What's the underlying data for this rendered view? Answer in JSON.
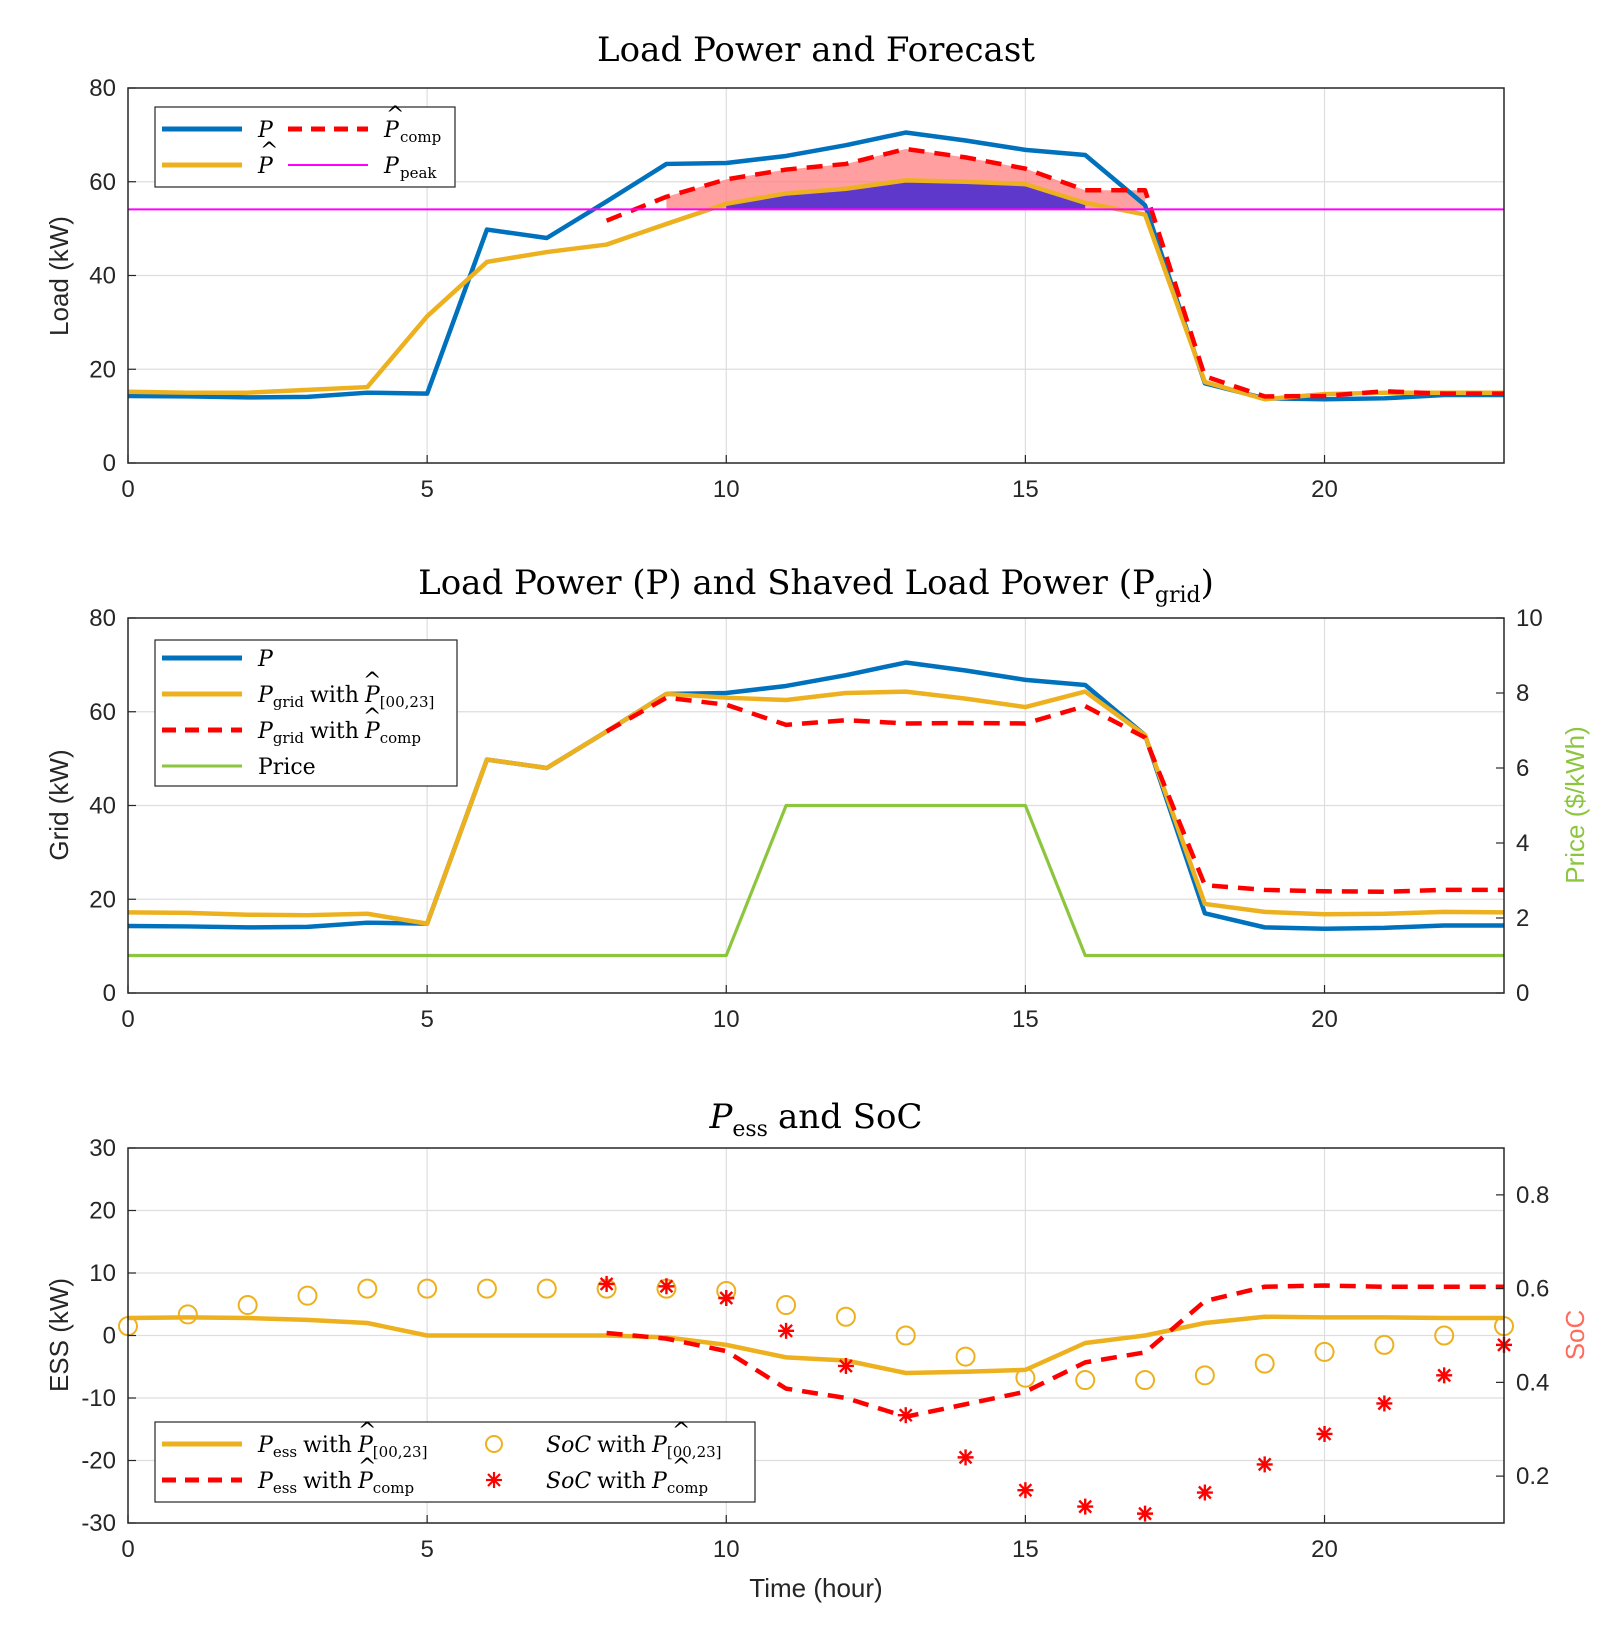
{
  "chart_data": [
    {
      "type": "line",
      "title": "Load Power and Forecast",
      "xlabel": "",
      "ylabel": "Load (kW)",
      "xlim": [
        0,
        23
      ],
      "ylim": [
        0,
        80
      ],
      "xticks": [
        0,
        5,
        10,
        15,
        20
      ],
      "yticks": [
        0,
        20,
        40,
        60,
        80
      ],
      "legend_position": "top-left",
      "series": [
        {
          "name": "P",
          "color": "#0072BD",
          "style": "solid",
          "x": [
            0,
            1,
            2,
            3,
            4,
            5,
            6,
            7,
            8,
            9,
            10,
            11,
            12,
            13,
            14,
            15,
            16,
            17,
            18,
            19,
            20,
            21,
            22,
            23
          ],
          "values": [
            14.3,
            14.2,
            14.0,
            14.1,
            15.0,
            14.8,
            49.8,
            48.0,
            55.8,
            63.8,
            64.0,
            65.5,
            67.8,
            70.5,
            68.8,
            66.8,
            65.7,
            55.0,
            17.0,
            13.8,
            13.6,
            13.8,
            14.5,
            14.5
          ]
        },
        {
          "name": "P̂",
          "color": "#EDB120",
          "style": "solid",
          "x": [
            0,
            1,
            2,
            3,
            4,
            5,
            6,
            7,
            8,
            9,
            10,
            11,
            12,
            13,
            14,
            15,
            16,
            17,
            18,
            19,
            20,
            21,
            22,
            23
          ],
          "values": [
            15.2,
            15.0,
            15.0,
            15.6,
            16.2,
            31.3,
            42.9,
            45.0,
            46.6,
            51.0,
            55.3,
            57.5,
            58.5,
            60.3,
            60.0,
            59.5,
            55.5,
            53.0,
            17.3,
            13.6,
            14.7,
            15.0,
            15.0,
            15.0
          ]
        },
        {
          "name": "P̂comp",
          "color": "#FF0000",
          "style": "dashed",
          "x": [
            8,
            9,
            10,
            11,
            12,
            13,
            14,
            15,
            16,
            17,
            18,
            19,
            20,
            21,
            22,
            23
          ],
          "values": [
            51.7,
            56.8,
            60.5,
            62.6,
            63.8,
            67.0,
            65.2,
            62.8,
            58.2,
            58.2,
            18.5,
            14.2,
            14.3,
            15.3,
            14.8,
            14.8
          ]
        },
        {
          "name": "Ppeak",
          "color": "#FF00FF",
          "style": "solid",
          "x": [
            0,
            23
          ],
          "values": [
            54.1,
            54.1
          ]
        }
      ],
      "areas": [
        {
          "name": "forecast-above-peak",
          "color": "#FF7F7F",
          "x": [
            9,
            10,
            11,
            12,
            13,
            14,
            15,
            16,
            17
          ],
          "upper": [
            56.8,
            60.5,
            62.6,
            63.8,
            67.0,
            65.2,
            62.8,
            58.2,
            58.2
          ],
          "lower": [
            54.1,
            54.1,
            54.1,
            54.1,
            54.1,
            54.1,
            54.1,
            54.1,
            54.1
          ]
        },
        {
          "name": "peak-shaving-band",
          "color": "#5533CC",
          "x": [
            10,
            11,
            12,
            13,
            14,
            15,
            16
          ],
          "upper": [
            55.3,
            57.5,
            58.5,
            60.3,
            60.0,
            59.5,
            55.5
          ],
          "lower": [
            54.1,
            54.1,
            54.1,
            54.1,
            54.1,
            54.1,
            54.1
          ]
        }
      ],
      "legend": {
        "P": "P",
        "Phat": "P",
        "Pcomp": "P",
        "Pcomp_sub": "comp",
        "Ppeak": "P",
        "Ppeak_sub": "peak"
      }
    },
    {
      "type": "line",
      "title": "Load Power (P) and Shaved Load Power (P",
      "title_sub": "grid",
      "xlabel": "",
      "ylabel": "Grid (kW)",
      "y2label": "Price ($/kWh)",
      "xlim": [
        0,
        23
      ],
      "ylim": [
        0,
        80
      ],
      "y2lim": [
        0,
        10
      ],
      "xticks": [
        0,
        5,
        10,
        15,
        20
      ],
      "yticks": [
        0,
        20,
        40,
        60,
        80
      ],
      "y2ticks": [
        0,
        2,
        4,
        6,
        8,
        10
      ],
      "legend_position": "top-left",
      "series": [
        {
          "name": "P",
          "color": "#0072BD",
          "style": "solid",
          "x": [
            0,
            1,
            2,
            3,
            4,
            5,
            6,
            7,
            8,
            9,
            10,
            11,
            12,
            13,
            14,
            15,
            16,
            17,
            18,
            19,
            20,
            21,
            22,
            23
          ],
          "values": [
            14.3,
            14.2,
            14.0,
            14.1,
            15.0,
            14.8,
            49.8,
            48.0,
            55.8,
            63.8,
            64.0,
            65.5,
            67.8,
            70.5,
            68.8,
            66.8,
            65.7,
            55.0,
            17.0,
            14.0,
            13.7,
            13.9,
            14.4,
            14.4
          ]
        },
        {
          "name": "Pgrid with P̂[00,23]",
          "color": "#EDB120",
          "style": "solid",
          "x": [
            0,
            1,
            2,
            3,
            4,
            5,
            6,
            7,
            8,
            9,
            10,
            11,
            12,
            13,
            14,
            15,
            16,
            17,
            18,
            19,
            20,
            21,
            22,
            23
          ],
          "values": [
            17.2,
            17.1,
            16.7,
            16.6,
            16.9,
            14.8,
            49.8,
            48.0,
            55.8,
            63.8,
            63.0,
            62.5,
            64.0,
            64.3,
            62.8,
            61.0,
            64.3,
            55.0,
            19.0,
            17.3,
            16.8,
            16.9,
            17.3,
            17.2
          ]
        },
        {
          "name": "Pgrid with P̂comp",
          "color": "#FF0000",
          "style": "dashed",
          "x": [
            8,
            9,
            10,
            11,
            12,
            13,
            14,
            15,
            16,
            17,
            18,
            19,
            20,
            21,
            22,
            23
          ],
          "values": [
            55.8,
            63.0,
            61.5,
            57.2,
            58.2,
            57.5,
            57.6,
            57.5,
            61.2,
            54.5,
            23.0,
            22.0,
            21.7,
            21.6,
            22.0,
            22.0
          ]
        },
        {
          "name": "Price",
          "color": "#8CC63F",
          "style": "solid",
          "axis": "right",
          "x": [
            0,
            1,
            2,
            3,
            4,
            5,
            6,
            7,
            8,
            9,
            10,
            11,
            12,
            13,
            14,
            15,
            16,
            17,
            18,
            19,
            20,
            21,
            22,
            23
          ],
          "values": [
            1,
            1,
            1,
            1,
            1,
            1,
            1,
            1,
            1,
            1,
            1,
            5,
            5,
            5,
            5,
            5,
            1,
            1,
            1,
            1,
            1,
            1,
            1,
            1
          ]
        }
      ],
      "legend": {
        "P": "P",
        "Pgrid1": "P",
        "Pgrid1_sub": "grid",
        "Pgrid1_with": "with",
        "Pgrid1_hat": "P",
        "Pgrid1_hatsub": "[00,23]",
        "Pgrid2": "P",
        "Pgrid2_sub": "grid",
        "Pgrid2_with": "with",
        "Pgrid2_hat": "P",
        "Pgrid2_hatsub": "comp",
        "Price": "Price"
      }
    },
    {
      "type": "line",
      "title": "P",
      "title_sub": "ess",
      "title_rest": "and SoC",
      "xlabel": "Time (hour)",
      "ylabel": "ESS (kW)",
      "y2label": "SoC",
      "xlim": [
        0,
        23
      ],
      "ylim": [
        -30,
        30
      ],
      "y2lim": [
        0.1,
        0.9
      ],
      "xticks": [
        0,
        5,
        10,
        15,
        20
      ],
      "yticks": [
        -30,
        -20,
        -10,
        0,
        10,
        20,
        30
      ],
      "y2ticks": [
        0.2,
        0.4,
        0.6,
        0.8
      ],
      "legend_position": "bottom-left",
      "series": [
        {
          "name": "Pess with P̂[00,23]",
          "color": "#EDB120",
          "style": "solid",
          "x": [
            0,
            1,
            2,
            3,
            4,
            5,
            6,
            7,
            8,
            9,
            10,
            11,
            12,
            13,
            14,
            15,
            16,
            17,
            18,
            19,
            20,
            21,
            22,
            23
          ],
          "values": [
            2.8,
            2.9,
            2.8,
            2.5,
            2.0,
            0,
            0,
            0,
            0,
            -0.3,
            -1.5,
            -3.5,
            -4.0,
            -6.0,
            -5.8,
            -5.5,
            -1.2,
            0,
            2.0,
            3.0,
            2.9,
            2.9,
            2.8,
            2.8
          ]
        },
        {
          "name": "Pess with P̂comp",
          "color": "#FF0000",
          "style": "dashed",
          "x": [
            8,
            9,
            10,
            11,
            12,
            13,
            14,
            15,
            16,
            17,
            18,
            19,
            20,
            21,
            22,
            23
          ],
          "values": [
            0.4,
            -0.5,
            -2.5,
            -8.5,
            -10.0,
            -13.0,
            -11.0,
            -9.0,
            -4.3,
            -2.7,
            5.5,
            7.8,
            8.0,
            7.8,
            7.8,
            7.8
          ]
        },
        {
          "name": "SoC with P̂[00,23]",
          "color": "#EDB120",
          "style": "circle",
          "axis": "right",
          "x": [
            0,
            1,
            2,
            3,
            4,
            5,
            6,
            7,
            8,
            9,
            10,
            11,
            12,
            13,
            14,
            15,
            16,
            17,
            18,
            19,
            20,
            21,
            22,
            23
          ],
          "values": [
            0.52,
            0.545,
            0.565,
            0.585,
            0.6,
            0.6,
            0.6,
            0.6,
            0.6,
            0.6,
            0.595,
            0.565,
            0.54,
            0.5,
            0.455,
            0.41,
            0.405,
            0.405,
            0.415,
            0.44,
            0.465,
            0.48,
            0.5,
            0.52
          ]
        },
        {
          "name": "SoC with P̂comp",
          "color": "#FF0000",
          "style": "asterisk",
          "axis": "right",
          "x": [
            8,
            9,
            10,
            11,
            12,
            13,
            14,
            15,
            16,
            17,
            18,
            19,
            20,
            21,
            22,
            23
          ],
          "values": [
            0.61,
            0.605,
            0.58,
            0.51,
            0.435,
            0.33,
            0.24,
            0.17,
            0.135,
            0.12,
            0.165,
            0.225,
            0.29,
            0.355,
            0.415,
            0.48
          ]
        }
      ],
      "legend": {
        "Pess1": "P",
        "Pess1_sub": "ess",
        "Pess1_with": "with",
        "Pess1_hat": "P",
        "Pess1_hatsub": "[00,23]",
        "Pess2": "P",
        "Pess2_sub": "ess",
        "Pess2_with": "with",
        "Pess2_hat": "P",
        "Pess2_hatsub": "comp",
        "Soc1": "SoC",
        "Soc1_with": "with",
        "Soc1_hat": "P",
        "Soc1_hatsub": "[00,23]",
        "Soc2": "SoC",
        "Soc2_with": "with",
        "Soc2_hat": "P",
        "Soc2_hatsub": "comp"
      }
    }
  ]
}
